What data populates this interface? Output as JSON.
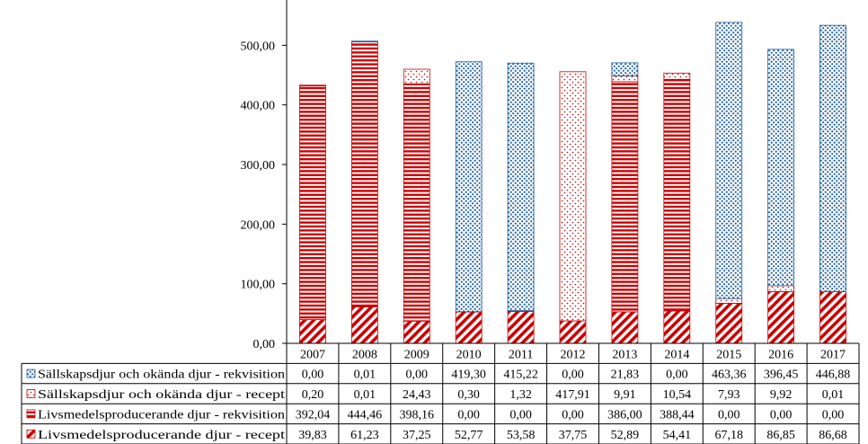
{
  "chart_data": {
    "type": "bar",
    "stacked": true,
    "categories": [
      "2007",
      "2008",
      "2009",
      "2010",
      "2011",
      "2012",
      "2013",
      "2014",
      "2015",
      "2016",
      "2017"
    ],
    "series": [
      {
        "name": "Livsmedelsproducerande djur - recept",
        "pattern": "diagonal",
        "color": "#cc0000",
        "values": [
          39.83,
          61.23,
          37.25,
          52.77,
          53.58,
          37.75,
          52.89,
          54.41,
          67.18,
          86.85,
          86.68
        ],
        "labels": [
          "39,83",
          "61,23",
          "37,25",
          "52,77",
          "53,58",
          "37,75",
          "52,89",
          "54,41",
          "67,18",
          "86,85",
          "86,68"
        ]
      },
      {
        "name": "Livsmedelsproducerande djur - rekvisition",
        "pattern": "horizontal",
        "color": "#cc0000",
        "values": [
          392.04,
          444.46,
          398.16,
          0.0,
          0.0,
          0.0,
          386.0,
          388.44,
          0.0,
          0.0,
          0.0
        ],
        "labels": [
          "392,04",
          "444,46",
          "398,16",
          "0,00",
          "0,00",
          "0,00",
          "386,00",
          "388,44",
          "0,00",
          "0,00",
          "0,00"
        ]
      },
      {
        "name": "Sällskapsdjur och okända djur - recept",
        "pattern": "dots-red",
        "color": "#cc0000",
        "values": [
          0.2,
          0.01,
          24.43,
          0.3,
          1.32,
          417.91,
          9.91,
          10.54,
          7.93,
          9.92,
          0.01
        ],
        "labels": [
          "0,20",
          "0,01",
          "24,43",
          "0,30",
          "1,32",
          "417,91",
          "9,91",
          "10,54",
          "7,93",
          "9,92",
          "0,01"
        ]
      },
      {
        "name": "Sällskapsdjur och okända djur - rekvisition",
        "pattern": "dots-blue",
        "color": "#1f5f9f",
        "values": [
          0.0,
          0.01,
          0.0,
          419.3,
          415.22,
          0.0,
          21.83,
          0.0,
          463.36,
          396.45,
          446.88
        ],
        "labels": [
          "0,00",
          "0,01",
          "0,00",
          "419,30",
          "415,22",
          "0,00",
          "21,83",
          "0,00",
          "463,36",
          "396,45",
          "446,88"
        ]
      }
    ],
    "table_row_order": [
      3,
      2,
      1,
      0
    ],
    "y_ticks": [
      0,
      100,
      200,
      300,
      400,
      500
    ],
    "y_tick_labels": [
      "0,00",
      "100,00",
      "200,00",
      "300,00",
      "400,00",
      "500,00"
    ],
    "ylim": [
      0,
      576
    ],
    "title": "",
    "xlabel": "",
    "ylabel": "",
    "grid": false,
    "legend": "data-table"
  }
}
